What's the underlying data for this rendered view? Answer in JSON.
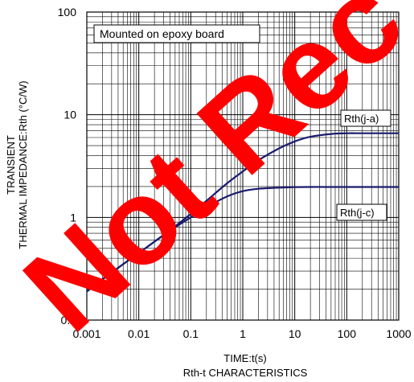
{
  "chart_data": {
    "type": "line",
    "xscale": "log",
    "yscale": "log",
    "xlim": [
      0.001,
      1000
    ],
    "ylim": [
      0.1,
      100
    ],
    "xticks": [
      "0.001",
      "0.01",
      "0.1",
      "1",
      "10",
      "100",
      "1000"
    ],
    "yticks": [
      "0.1",
      "1",
      "10",
      "100"
    ],
    "xlabel": "TIME:t(s)",
    "ylabel_line1": "TRANSIENT",
    "ylabel_line2": "THERMAL IMPEDANCE:Rth (°C/W)",
    "caption": "Rth-t CHARACTERISTICS",
    "annotation": "Mounted on epoxy board",
    "grid": true,
    "series": [
      {
        "name": "Rth(j-a)",
        "x": [
          0.001,
          0.002,
          0.005,
          0.01,
          0.02,
          0.05,
          0.1,
          0.2,
          0.5,
          1,
          2,
          5,
          10,
          20,
          50,
          100,
          200,
          500,
          1000
        ],
        "y": [
          0.19,
          0.25,
          0.35,
          0.45,
          0.58,
          0.82,
          1.08,
          1.45,
          2.15,
          2.8,
          3.6,
          4.7,
          5.5,
          6.1,
          6.5,
          6.6,
          6.6,
          6.6,
          6.6
        ]
      },
      {
        "name": "Rth(j-c)",
        "x": [
          0.001,
          0.002,
          0.005,
          0.01,
          0.02,
          0.05,
          0.1,
          0.2,
          0.5,
          1,
          2,
          5,
          10,
          20,
          50,
          100,
          200,
          500,
          1000
        ],
        "y": [
          0.19,
          0.25,
          0.35,
          0.45,
          0.58,
          0.8,
          1.0,
          1.25,
          1.6,
          1.8,
          1.9,
          1.95,
          1.97,
          1.98,
          1.98,
          1.98,
          1.98,
          1.98,
          1.98
        ]
      }
    ],
    "colors": {
      "curve": "#1a1a6e",
      "grid": "#000000",
      "watermark": "#ff0000"
    },
    "watermark": "Not Recommended for New"
  }
}
